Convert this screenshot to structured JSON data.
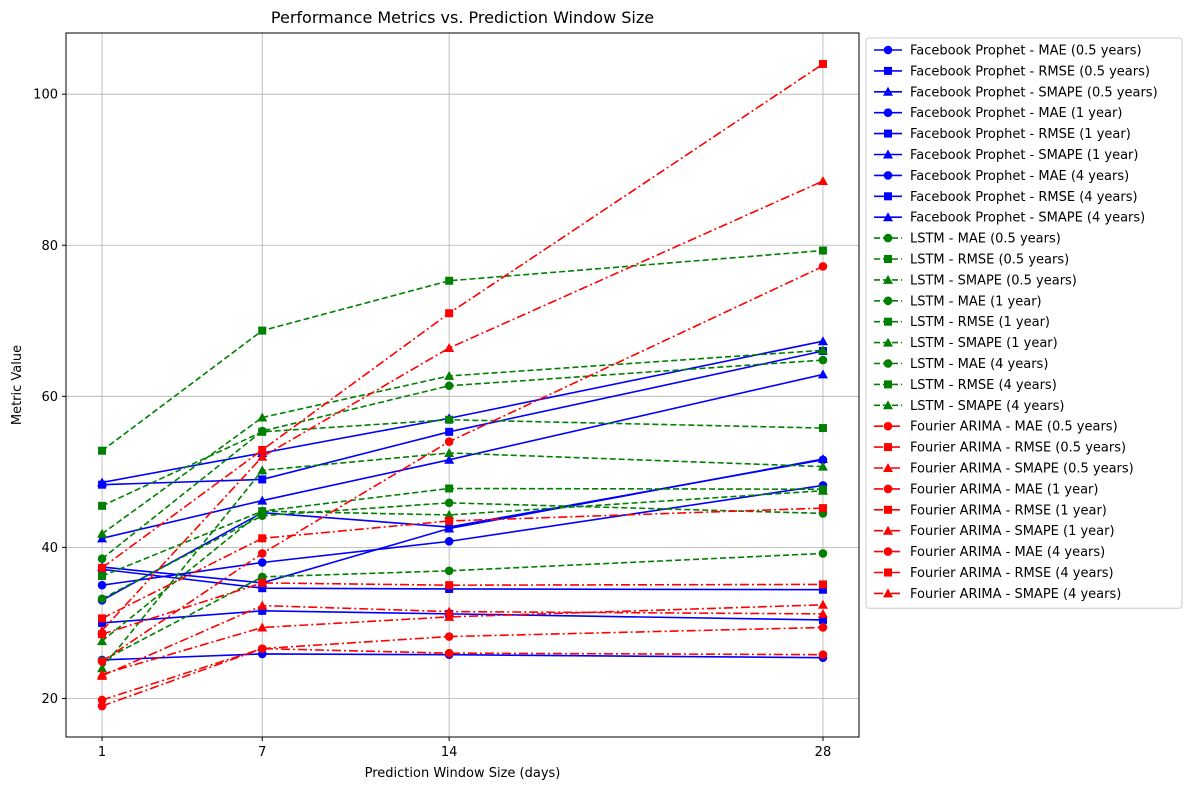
{
  "chart_data": {
    "type": "line",
    "title": "Performance Metrics vs. Prediction Window Size",
    "xlabel": "Prediction Window Size (days)",
    "ylabel": "Metric Value",
    "x": [
      1,
      7,
      14,
      28
    ],
    "x_ticks": [
      "1",
      "7",
      "14",
      "28"
    ],
    "y_ticks": [
      "20",
      "40",
      "60",
      "80",
      "100"
    ],
    "xlim": [
      -0.35,
      29.35
    ],
    "ylim": [
      14.9,
      108.1
    ],
    "grid": true,
    "legend_position": "outside-right",
    "series": [
      {
        "name": "Facebook Prophet - MAE (0.5 years)",
        "color": "#0000ff",
        "linestyle": "solid",
        "marker": "circle",
        "values": [
          25.1,
          25.9,
          25.8,
          25.4
        ]
      },
      {
        "name": "Facebook Prophet - RMSE (0.5 years)",
        "color": "#0000ff",
        "linestyle": "solid",
        "marker": "square",
        "values": [
          30.0,
          31.6,
          31.2,
          30.4
        ]
      },
      {
        "name": "Facebook Prophet - SMAPE (0.5 years)",
        "color": "#0000ff",
        "linestyle": "solid",
        "marker": "triangle",
        "values": [
          37.4,
          35.3,
          42.5,
          51.7
        ]
      },
      {
        "name": "Facebook Prophet - MAE (1 year)",
        "color": "#0000ff",
        "linestyle": "solid",
        "marker": "circle",
        "values": [
          35.0,
          38.0,
          40.8,
          48.2
        ]
      },
      {
        "name": "Facebook Prophet - RMSE (1 year)",
        "color": "#0000ff",
        "linestyle": "solid",
        "marker": "square",
        "values": [
          48.3,
          49.0,
          55.3,
          66.0
        ]
      },
      {
        "name": "Facebook Prophet - SMAPE (1 year)",
        "color": "#0000ff",
        "linestyle": "solid",
        "marker": "triangle",
        "values": [
          41.2,
          46.2,
          51.6,
          62.9
        ]
      },
      {
        "name": "Facebook Prophet - MAE (4 years)",
        "color": "#0000ff",
        "linestyle": "solid",
        "marker": "circle",
        "values": [
          33.0,
          44.6,
          42.7,
          51.6
        ]
      },
      {
        "name": "Facebook Prophet - RMSE (4 years)",
        "color": "#0000ff",
        "linestyle": "solid",
        "marker": "square",
        "values": [
          37.1,
          34.6,
          34.5,
          34.4
        ]
      },
      {
        "name": "Facebook Prophet - SMAPE (4 years)",
        "color": "#0000ff",
        "linestyle": "solid",
        "marker": "triangle",
        "values": [
          48.6,
          52.5,
          57.1,
          67.3
        ]
      },
      {
        "name": "LSTM - MAE (0.5 years)",
        "color": "#008000",
        "linestyle": "dashed",
        "marker": "circle",
        "values": [
          33.2,
          44.2,
          45.9,
          44.5
        ]
      },
      {
        "name": "LSTM - RMSE (0.5 years)",
        "color": "#008000",
        "linestyle": "dashed",
        "marker": "square",
        "values": [
          52.8,
          68.7,
          75.3,
          79.3
        ]
      },
      {
        "name": "LSTM - SMAPE (0.5 years)",
        "color": "#008000",
        "linestyle": "dashed",
        "marker": "triangle",
        "values": [
          27.6,
          44.8,
          44.3,
          47.5
        ]
      },
      {
        "name": "LSTM - MAE (1 year)",
        "color": "#008000",
        "linestyle": "dashed",
        "marker": "circle",
        "values": [
          38.5,
          55.4,
          61.4,
          64.8
        ]
      },
      {
        "name": "LSTM - RMSE (1 year)",
        "color": "#008000",
        "linestyle": "dashed",
        "marker": "square",
        "values": [
          45.5,
          55.3,
          56.9,
          55.8
        ]
      },
      {
        "name": "LSTM - SMAPE (1 year)",
        "color": "#008000",
        "linestyle": "dashed",
        "marker": "triangle",
        "values": [
          41.8,
          57.2,
          62.7,
          66.1
        ]
      },
      {
        "name": "LSTM - MAE (4 years)",
        "color": "#008000",
        "linestyle": "dashed",
        "marker": "circle",
        "values": [
          25.0,
          36.1,
          36.9,
          39.2
        ]
      },
      {
        "name": "LSTM - RMSE (4 years)",
        "color": "#008000",
        "linestyle": "dashed",
        "marker": "square",
        "values": [
          36.2,
          44.8,
          47.8,
          47.7
        ]
      },
      {
        "name": "LSTM - SMAPE (4 years)",
        "color": "#008000",
        "linestyle": "dashed",
        "marker": "triangle",
        "values": [
          24.0,
          50.2,
          52.5,
          50.7
        ]
      },
      {
        "name": "Fourier ARIMA - MAE (0.5 years)",
        "color": "#ff0000",
        "linestyle": "dashdot",
        "marker": "circle",
        "values": [
          19.8,
          26.6,
          26.0,
          25.8
        ]
      },
      {
        "name": "Fourier ARIMA - RMSE (0.5 years)",
        "color": "#ff0000",
        "linestyle": "dashdot",
        "marker": "square",
        "values": [
          28.5,
          35.3,
          35.0,
          35.1
        ]
      },
      {
        "name": "Fourier ARIMA - SMAPE (0.5 years)",
        "color": "#ff0000",
        "linestyle": "dashdot",
        "marker": "triangle",
        "values": [
          23.0,
          32.3,
          31.5,
          31.2
        ]
      },
      {
        "name": "Fourier ARIMA - MAE (1 year)",
        "color": "#ff0000",
        "linestyle": "dashdot",
        "marker": "circle",
        "values": [
          24.9,
          39.2,
          54.0,
          77.2
        ]
      },
      {
        "name": "Fourier ARIMA - RMSE (1 year)",
        "color": "#ff0000",
        "linestyle": "dashdot",
        "marker": "square",
        "values": [
          37.3,
          52.9,
          71.0,
          104.0
        ]
      },
      {
        "name": "Fourier ARIMA - SMAPE (1 year)",
        "color": "#ff0000",
        "linestyle": "dashdot",
        "marker": "triangle",
        "values": [
          29.0,
          52.0,
          66.4,
          88.5
        ]
      },
      {
        "name": "Fourier ARIMA - MAE (4 years)",
        "color": "#ff0000",
        "linestyle": "dashdot",
        "marker": "circle",
        "values": [
          19.0,
          26.6,
          28.2,
          29.4
        ]
      },
      {
        "name": "Fourier ARIMA - RMSE (4 years)",
        "color": "#ff0000",
        "linestyle": "dashdot",
        "marker": "square",
        "values": [
          30.6,
          41.2,
          43.5,
          45.2
        ]
      },
      {
        "name": "Fourier ARIMA - SMAPE (4 years)",
        "color": "#ff0000",
        "linestyle": "dashdot",
        "marker": "triangle",
        "values": [
          23.2,
          29.4,
          30.8,
          32.4
        ]
      }
    ]
  }
}
